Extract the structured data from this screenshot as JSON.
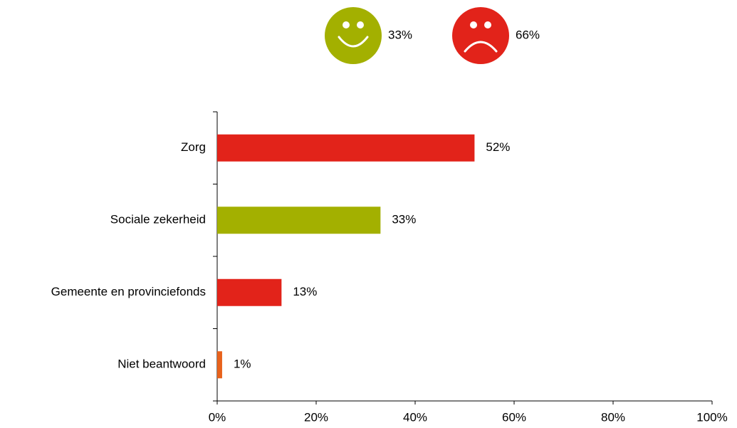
{
  "chart_data": {
    "type": "bar",
    "summary": [
      {
        "value": 33,
        "label": "33%",
        "color": "#a3b000"
      },
      {
        "value": 66,
        "label": "66%",
        "color": "#e2231a"
      }
    ],
    "categories": [
      "Zorg",
      "Sociale zekerheid",
      "Gemeente en provinciefonds",
      "Niet beantwoord"
    ],
    "values": [
      52,
      33,
      13,
      1
    ],
    "value_labels": [
      "52%",
      "33%",
      "13%",
      "1%"
    ],
    "colors": [
      "#e2231a",
      "#a3b000",
      "#e2231a",
      "#e8621c"
    ],
    "xlim": [
      0,
      100
    ],
    "xticks": [
      {
        "value": 0,
        "label": "0%"
      },
      {
        "value": 20,
        "label": "20%"
      },
      {
        "value": 40,
        "label": "40%"
      },
      {
        "value": 60,
        "label": "60%"
      },
      {
        "value": 80,
        "label": "80%"
      },
      {
        "value": 100,
        "label": "100%"
      }
    ]
  }
}
